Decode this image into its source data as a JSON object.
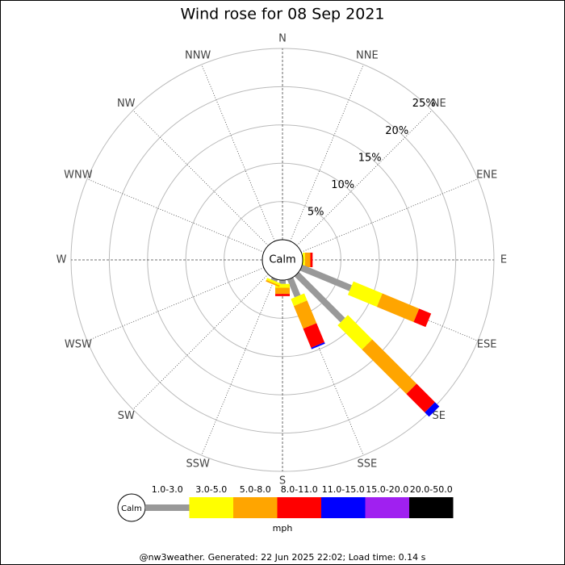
{
  "chart_data": {
    "type": "windrose",
    "title": "Wind rose for 08 Sep 2021",
    "categories": [
      "N",
      "NNE",
      "NE",
      "ENE",
      "E",
      "ESE",
      "SE",
      "SSE",
      "S",
      "SSW",
      "SW",
      "WSW",
      "W",
      "WNW",
      "NW",
      "NNW"
    ],
    "series": [
      {
        "name": "1.0-3.0",
        "color": "#999999",
        "values": [
          0,
          0,
          0,
          0,
          0,
          7.0,
          8.5,
          2.5,
          0.5,
          0.3,
          0,
          0,
          0,
          0,
          0,
          0
        ]
      },
      {
        "name": "3.0-5.0",
        "color": "#ffff00",
        "values": [
          0,
          0,
          0,
          0,
          0.3,
          4.1,
          4.5,
          1.0,
          0.5,
          0.3,
          0,
          0,
          0,
          0,
          0,
          0
        ]
      },
      {
        "name": "5.0-8.0",
        "color": "#ffa500",
        "values": [
          0,
          0,
          0,
          0,
          0.7,
          5.2,
          8.2,
          3.2,
          0.8,
          0.2,
          0,
          0,
          0,
          0,
          0,
          0
        ]
      },
      {
        "name": "8.0-11.0",
        "color": "#ff0000",
        "values": [
          0,
          0,
          0,
          0,
          0.3,
          1.7,
          3.4,
          2.7,
          0.3,
          0,
          0,
          0,
          0,
          0,
          0,
          0
        ]
      },
      {
        "name": "11.0-15.0",
        "color": "#0000ff",
        "values": [
          0,
          0,
          0,
          0,
          0,
          0,
          0.8,
          0.2,
          0,
          0,
          0,
          0,
          0,
          0,
          0,
          0
        ]
      },
      {
        "name": "15.0-20.0",
        "color": "#a020f0",
        "values": [
          0,
          0,
          0,
          0,
          0,
          0,
          0,
          0,
          0,
          0,
          0,
          0,
          0,
          0,
          0,
          0
        ]
      },
      {
        "name": "20.0-50.0",
        "color": "#000000",
        "values": [
          0,
          0,
          0,
          0,
          0,
          0,
          0,
          0,
          0,
          0,
          0,
          0,
          0,
          0,
          0,
          0
        ]
      }
    ],
    "rlim": [
      0,
      25
    ],
    "rticks": [
      {
        "value": 5,
        "label": "5%"
      },
      {
        "value": 10,
        "label": "10%"
      },
      {
        "value": 15,
        "label": "15%"
      },
      {
        "value": 20,
        "label": "20%"
      },
      {
        "value": 25,
        "label": "25%"
      }
    ],
    "calm_label": "Calm",
    "unit": "mph",
    "footer": "@nw3weather. Generated: 22 Jun 2025 22:02; Load time: 0.14 s"
  }
}
